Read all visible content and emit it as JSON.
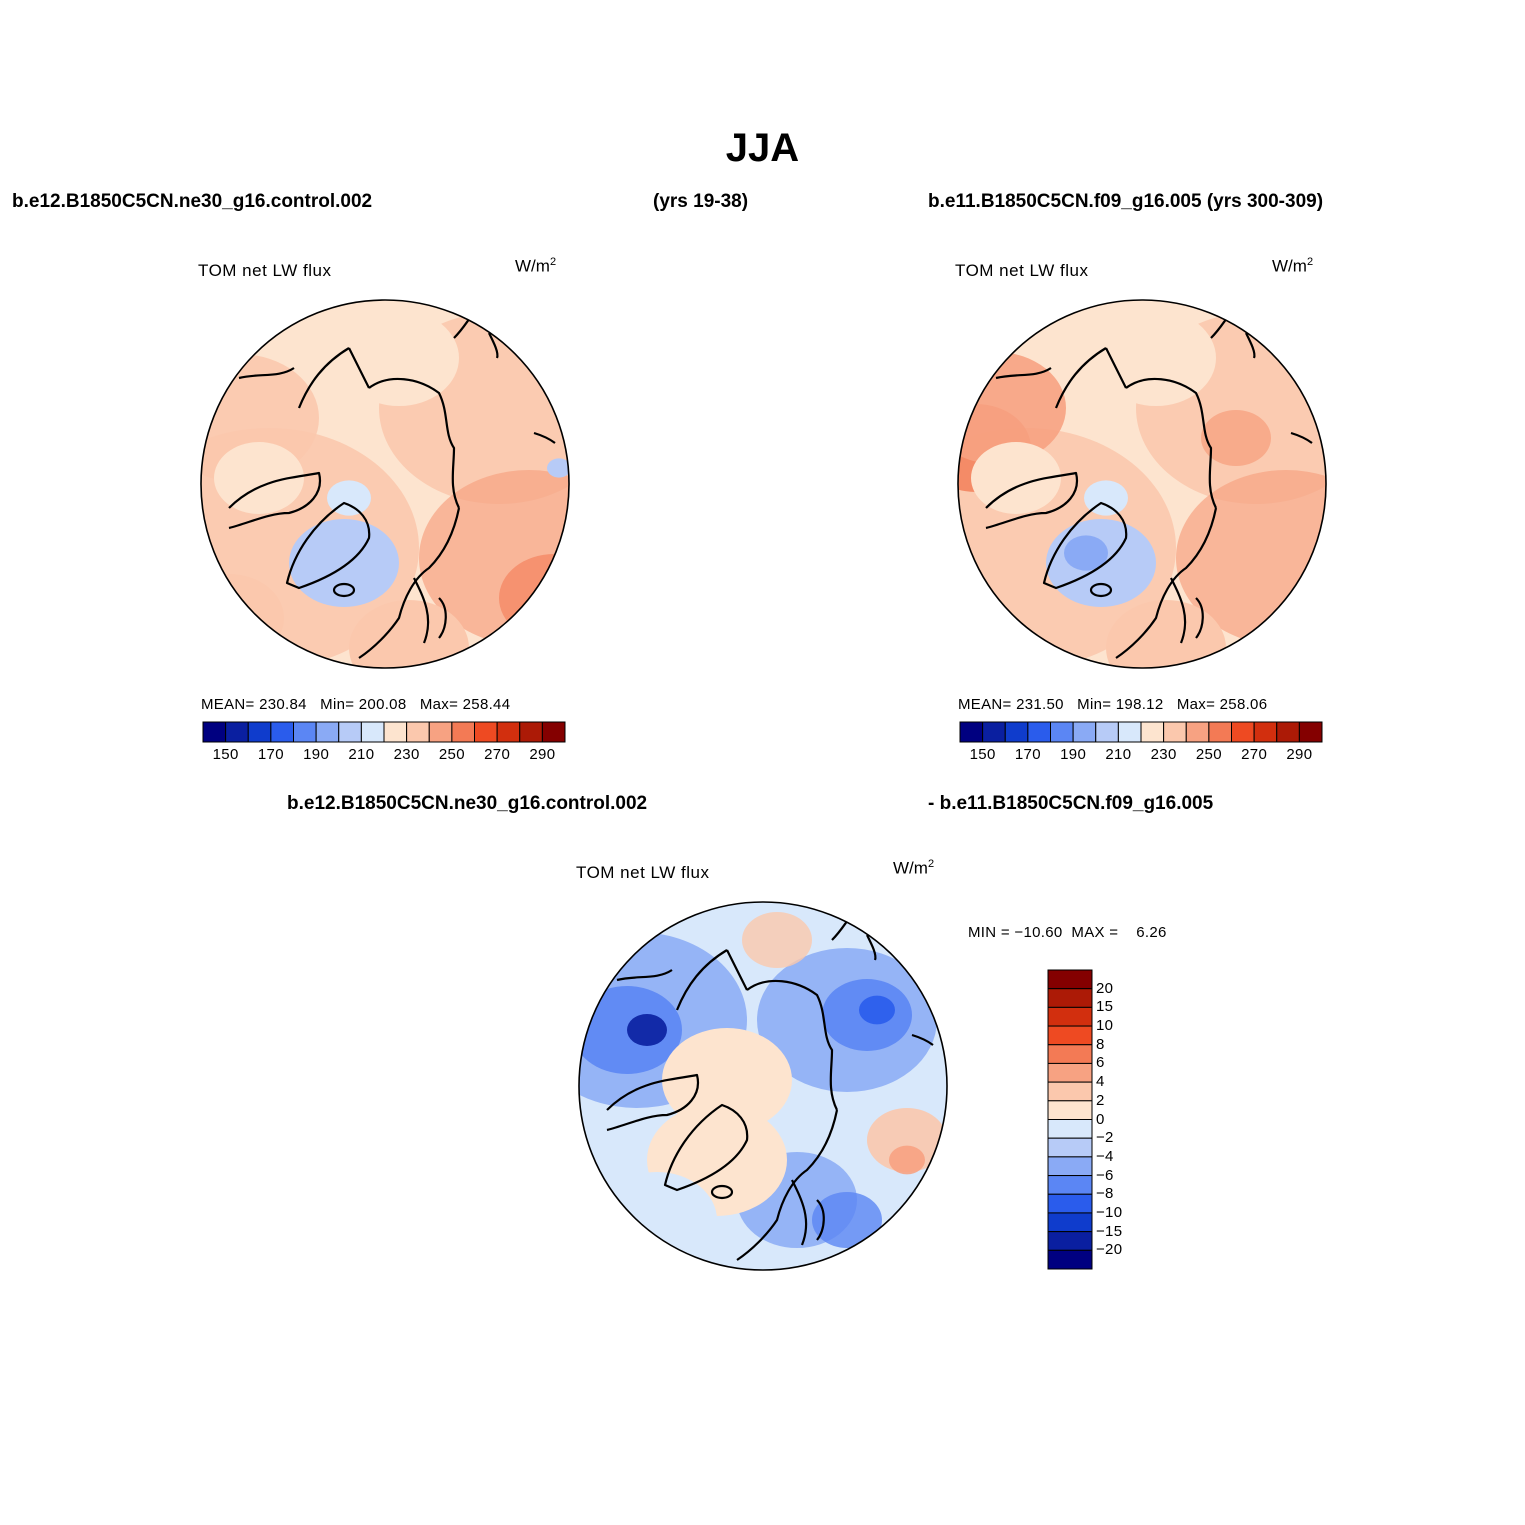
{
  "title": "JJA",
  "case1": {
    "name": "b.e12.B1850C5CN.ne30_g16.control.002",
    "years": "(yrs 19-38)"
  },
  "case2": {
    "name": "b.e11.B1850C5CN.f09_g16.005 (yrs 300-309)"
  },
  "diff_header": {
    "left": "b.e12.B1850C5CN.ne30_g16.control.002",
    "right": "- b.e11.B1850C5CN.f09_g16.005"
  },
  "panels": [
    {
      "variable": "TOM net LW flux",
      "units": "W/m",
      "units_sup": "2",
      "stats": {
        "mean_label": "MEAN=",
        "mean": "230.84",
        "min_label": "Min=",
        "min": "200.08",
        "max_label": "Max=",
        "max": "258.44"
      }
    },
    {
      "variable": "TOM net LW flux",
      "units": "W/m",
      "units_sup": "2",
      "stats": {
        "mean_label": "MEAN=",
        "mean": "231.50",
        "min_label": "Min=",
        "min": "198.12",
        "max_label": "Max=",
        "max": "258.06"
      }
    },
    {
      "variable": "TOM net LW flux",
      "units": "W/m",
      "units_sup": "2",
      "stats_text": "MIN = −10.60  MAX =    6.26"
    }
  ],
  "colorbar_abs": {
    "colors": [
      "#000080",
      "#0a1fa0",
      "#0f3ccc",
      "#2a5cec",
      "#5b86f4",
      "#8aaaf5",
      "#b7cbf7",
      "#d8e8fb",
      "#fde4cf",
      "#fbc8ad",
      "#f7a282",
      "#f37a55",
      "#ee4a22",
      "#d22f0e",
      "#ac1a06",
      "#840000"
    ],
    "tick_labels": [
      "150",
      "170",
      "190",
      "210",
      "230",
      "250",
      "270",
      "290"
    ]
  },
  "colorbar_diff": {
    "colors": [
      "#840000",
      "#ac1a06",
      "#d22f0e",
      "#ee4a22",
      "#f37a55",
      "#f7a282",
      "#fbc8ad",
      "#fde4cf",
      "#d8e8fb",
      "#b7cbf7",
      "#8aaaf5",
      "#5b86f4",
      "#2a5cec",
      "#0f3ccc",
      "#0a1fa0",
      "#000080"
    ],
    "tick_labels": [
      "20",
      "15",
      "10",
      "8",
      "6",
      "4",
      "2",
      "0",
      "−2",
      "−4",
      "−6",
      "−8",
      "−10",
      "−15",
      "−20"
    ]
  }
}
